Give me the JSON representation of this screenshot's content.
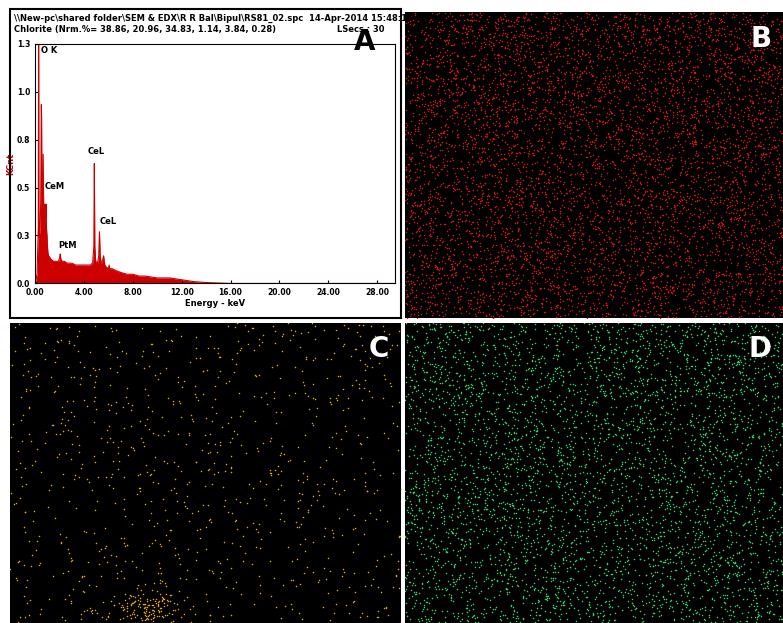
{
  "chart_data": {
    "type": "area",
    "label": "A",
    "title": "\\\\New-pc\\shared folder\\SEM & EDX\\R R Bal\\Bipul\\RS81_02.spc  14-Apr-2014 15:48:13",
    "subtitle": "Chlorite (Nrm.%= 38.86, 20.96, 34.83, 1.14, 3.84, 0.28)",
    "header_right": "LSecs : 30",
    "x_label": "Energy - keV",
    "y_label": "KCnt",
    "color": "#cc0000",
    "x": [
      0.0,
      0.15,
      0.25,
      0.28,
      0.3,
      0.33,
      0.4,
      0.45,
      0.5,
      0.52,
      0.55,
      0.6,
      0.65,
      0.7,
      0.75,
      0.8,
      0.85,
      0.88,
      0.92,
      0.97,
      1.0,
      1.05,
      1.1,
      1.2,
      1.3,
      1.5,
      1.7,
      1.9,
      2.0,
      2.05,
      2.1,
      2.2,
      2.4,
      2.6,
      2.8,
      3.0,
      3.3,
      3.6,
      3.9,
      4.2,
      4.5,
      4.7,
      4.8,
      4.84,
      4.88,
      4.95,
      5.1,
      5.2,
      5.26,
      5.32,
      5.4,
      5.5,
      5.6,
      5.65,
      5.7,
      5.8,
      6.0,
      6.05,
      6.1,
      6.3,
      6.6,
      7.0,
      7.5,
      8.0,
      8.5,
      9.0,
      10.0,
      11.0,
      12.0,
      13.0,
      14.0,
      16.0,
      20.0,
      24.0,
      29.5
    ],
    "values": [
      0.0,
      0.05,
      0.3,
      1.3,
      0.4,
      0.25,
      0.3,
      0.45,
      0.97,
      0.9,
      0.5,
      0.3,
      0.7,
      0.35,
      0.3,
      0.43,
      0.35,
      0.43,
      0.3,
      0.25,
      0.2,
      0.16,
      0.15,
      0.14,
      0.13,
      0.12,
      0.12,
      0.12,
      0.14,
      0.16,
      0.13,
      0.12,
      0.12,
      0.11,
      0.11,
      0.11,
      0.1,
      0.1,
      0.1,
      0.1,
      0.1,
      0.11,
      0.2,
      0.65,
      0.2,
      0.12,
      0.11,
      0.15,
      0.28,
      0.15,
      0.11,
      0.12,
      0.15,
      0.12,
      0.1,
      0.09,
      0.08,
      0.1,
      0.08,
      0.08,
      0.07,
      0.06,
      0.05,
      0.05,
      0.04,
      0.04,
      0.03,
      0.03,
      0.02,
      0.01,
      0.005,
      0.0,
      0.0,
      0.0,
      0.0
    ],
    "xlim": [
      0,
      29.5
    ],
    "xticks": [
      {
        "value": 0,
        "label": "0.00"
      },
      {
        "value": 4,
        "label": "4.00"
      },
      {
        "value": 8,
        "label": "8.00"
      },
      {
        "value": 12,
        "label": "12.00"
      },
      {
        "value": 16,
        "label": "16.00"
      },
      {
        "value": 20,
        "label": "20.00"
      },
      {
        "value": 24,
        "label": "24.00"
      },
      {
        "value": 28,
        "label": "28.00"
      }
    ],
    "ylim": [
      0,
      1.3
    ],
    "yticks": [
      {
        "value": 0,
        "label": "0.0"
      },
      {
        "value": 0.26,
        "label": "0.3"
      },
      {
        "value": 0.52,
        "label": "0.5"
      },
      {
        "value": 0.78,
        "label": "0.8"
      },
      {
        "value": 1.04,
        "label": "1.0"
      },
      {
        "value": 1.3,
        "label": "1.3"
      }
    ],
    "annotations": [
      {
        "text": "O K",
        "x": 0.45,
        "y": 1.24
      },
      {
        "text": "CeM",
        "x": 0.75,
        "y": 0.5
      },
      {
        "text": "PtM",
        "x": 1.9,
        "y": 0.18
      },
      {
        "text": "CeL",
        "x": 4.3,
        "y": 0.69
      },
      {
        "text": "CeL",
        "x": 5.25,
        "y": 0.31
      }
    ],
    "grid": false
  },
  "maps": [
    {
      "label": "B",
      "color": "#d01818"
    },
    {
      "label": "C",
      "color": "#e0a820"
    },
    {
      "label": "D",
      "color": "#2ed46a"
    }
  ]
}
